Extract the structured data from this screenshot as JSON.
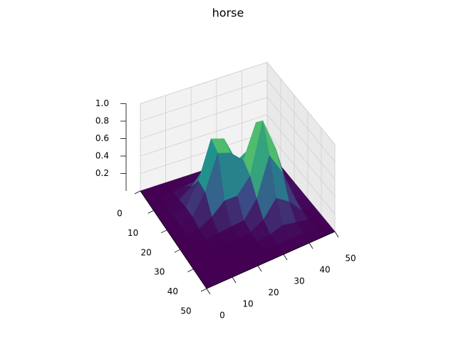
{
  "chart_data": {
    "type": "surface",
    "title": "horse",
    "cmap": "viridis",
    "x": [
      0,
      5,
      10,
      15,
      20,
      25,
      30,
      35,
      40,
      45,
      50
    ],
    "y": [
      0,
      5,
      10,
      15,
      20,
      25,
      30,
      35,
      40,
      45,
      50
    ],
    "z": [
      [
        0,
        0,
        0,
        0,
        0,
        0,
        0,
        0,
        0,
        0,
        0
      ],
      [
        0,
        0,
        0,
        0.02,
        0.04,
        0.04,
        0.02,
        0.03,
        0.02,
        0,
        0
      ],
      [
        0,
        0,
        0.02,
        0.12,
        0.29,
        0.27,
        0.13,
        0.14,
        0.08,
        0.01,
        0
      ],
      [
        0,
        0,
        0.04,
        0.29,
        0.72,
        0.67,
        0.36,
        0.45,
        0.27,
        0.04,
        0
      ],
      [
        0,
        0,
        0.04,
        0.27,
        0.66,
        0.61,
        0.47,
        0.85,
        0.52,
        0.07,
        0
      ],
      [
        0,
        0,
        0.01,
        0.09,
        0.22,
        0.22,
        0.39,
        0.97,
        0.6,
        0.08,
        0
      ],
      [
        0,
        0,
        0,
        0.01,
        0.03,
        0.04,
        0.23,
        0.67,
        0.42,
        0.06,
        0
      ],
      [
        0,
        0,
        0,
        0,
        0,
        0.01,
        0.09,
        0.28,
        0.18,
        0.02,
        0
      ],
      [
        0,
        0,
        0,
        0,
        0,
        0,
        0.02,
        0.07,
        0.04,
        0.01,
        0
      ],
      [
        0,
        0,
        0,
        0,
        0,
        0,
        0,
        0.01,
        0.01,
        0,
        0
      ],
      [
        0,
        0,
        0,
        0,
        0,
        0,
        0,
        0,
        0,
        0,
        0
      ]
    ],
    "xlim": [
      0,
      50
    ],
    "ylim": [
      0,
      50
    ],
    "zlim": [
      0,
      1
    ],
    "xticks": [
      0,
      10,
      20,
      30,
      40,
      50
    ],
    "yticks": [
      0,
      10,
      20,
      30,
      40,
      50
    ],
    "zticks": [
      0.2,
      0.4,
      0.6,
      0.8,
      {
        "value": 1,
        "label": "1.0"
      }
    ],
    "grid": true
  }
}
